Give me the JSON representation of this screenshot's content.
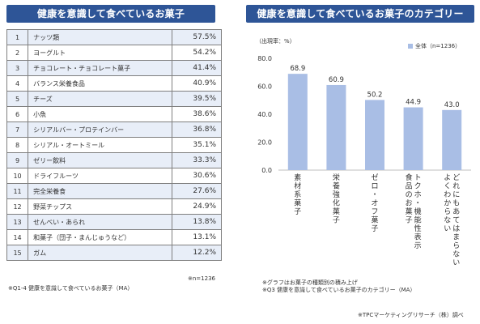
{
  "left_title": "健康を意識して食べているお菓子",
  "right_title": "健康を意識して食べているお菓子のカテゴリー",
  "ranking": [
    {
      "no": "1",
      "item": "ナッツ類",
      "pct": "57.5%"
    },
    {
      "no": "2",
      "item": "ヨーグルト",
      "pct": "54.2%"
    },
    {
      "no": "3",
      "item": "チョコレート・チョコレート菓子",
      "pct": "41.4%"
    },
    {
      "no": "4",
      "item": "バランス栄養食品",
      "pct": "40.9%"
    },
    {
      "no": "5",
      "item": "チーズ",
      "pct": "39.5%"
    },
    {
      "no": "6",
      "item": "小魚",
      "pct": "38.6%"
    },
    {
      "no": "7",
      "item": "シリアルバー・プロテインバー",
      "pct": "36.8%"
    },
    {
      "no": "8",
      "item": "シリアル・オートミール",
      "pct": "35.1%"
    },
    {
      "no": "9",
      "item": "ゼリー飲料",
      "pct": "33.3%"
    },
    {
      "no": "10",
      "item": "ドライフルーツ",
      "pct": "30.6%"
    },
    {
      "no": "11",
      "item": "完全栄養食",
      "pct": "27.6%"
    },
    {
      "no": "12",
      "item": "野菜チップス",
      "pct": "24.9%"
    },
    {
      "no": "13",
      "item": "せんべい・あられ",
      "pct": "13.8%"
    },
    {
      "no": "14",
      "item": "和菓子（団子・まんじゅうなど）",
      "pct": "13.1%"
    },
    {
      "no": "15",
      "item": "ガム",
      "pct": "12.2%"
    }
  ],
  "left_n": "※n=1236",
  "left_question": "※Q1-4 健康を意識して食べているお菓子（MA）",
  "right_footnote_1": "※グラフはお菓子の種類別の積み上げ",
  "right_footnote_2": "※Q3 健康を意識して食べているお菓子のカテゴリー（MA）",
  "source": "※TPCマーケティングリサーチ（株）調べ",
  "chart_data": {
    "type": "bar",
    "ylabel": "（出現率：%）",
    "ylim": [
      0,
      80
    ],
    "yticks": [
      "0.0",
      "20.0",
      "40.0",
      "60.0",
      "80.0"
    ],
    "categories": [
      "素材系菓子",
      "栄養強化菓子",
      "ゼロ・オフ菓子",
      "トクホ・機能性表示食品のお菓子",
      "どれにもあてはまらない・よくわからない"
    ],
    "category_lines": [
      [
        "素材系菓子"
      ],
      [
        "栄養強化菓子"
      ],
      [
        "ゼロ・オフ菓子"
      ],
      [
        "トクホ・機能性表示",
        "食品のお菓子"
      ],
      [
        "どれにもあてはまらない",
        "よくわからない"
      ]
    ],
    "series": [
      {
        "name": "全体（n=1236）",
        "values": [
          68.9,
          60.9,
          50.2,
          44.9,
          43.0
        ],
        "labels": [
          "68.9",
          "60.9",
          "50.2",
          "44.9",
          "43.0"
        ]
      }
    ],
    "bar_color": "#a9bee5",
    "legend": "top-right",
    "grid": false
  }
}
